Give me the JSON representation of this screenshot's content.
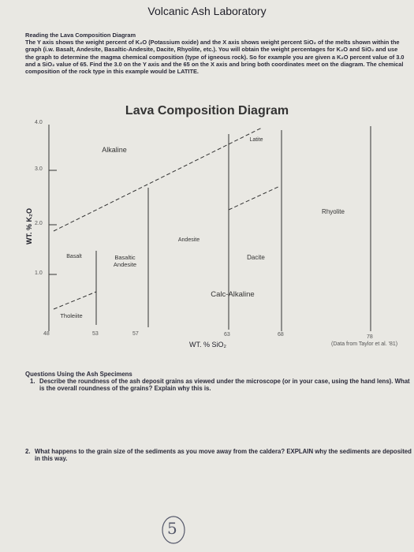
{
  "header": {
    "title": "Volcanic Ash Laboratory"
  },
  "intro": {
    "heading": "Reading the Lava Composition Diagram",
    "body": "The Y axis shows the weight percent of K₂O (Potassium oxide) and the X axis shows weight percent SiO₂ of the melts shown within the graph (i.w. Basalt, Andesite, Basaltic-Andesite, Dacite, Rhyolite, etc.). You will obtain the weight percentages for K₂O and SiO₂ and use the graph to determine the magma chemical composition (type of igneous rock). So for example you are given a K₂O percent value of 3.0 and a SiO₂ value of 65. Find the 3.0 on the Y axis and the 65 on the X axis and bring both coordinates meet on the diagram. The chemical composition of the rock type in this example would be LATITE."
  },
  "diagram": {
    "title": "Lava Composition Diagram",
    "y_axis_label": "WT. % K₂O",
    "x_axis_label": "WT. % SiO₂",
    "source": "(Data from Taylor et al. '81)",
    "y_ticks": [
      "4.0",
      "3.0",
      "2.0",
      "1.0"
    ],
    "x_ticks": [
      "48",
      "53",
      "57",
      "63",
      "68",
      "78"
    ],
    "regions": [
      "Alkaline",
      "Latite",
      "Rhyolite",
      "Andesite",
      "Basalt",
      "Basaltic Andesite",
      "Dacite",
      "Calc-Alkaline",
      "Tholeiite"
    ]
  },
  "questions": {
    "heading": "Questions Using the Ash Specimens",
    "items": [
      {
        "number": "1.",
        "text": "Describe the roundness of the ash deposit grains as viewed under the microscope (or in your case, using the hand lens). What is the overall roundness of the grains? Explain why this is."
      },
      {
        "number": "2.",
        "text": "What happens to the grain size of the sediments as you move away from the caldera? EXPLAIN why the sediments are deposited in this way."
      }
    ]
  },
  "annotation": "5"
}
